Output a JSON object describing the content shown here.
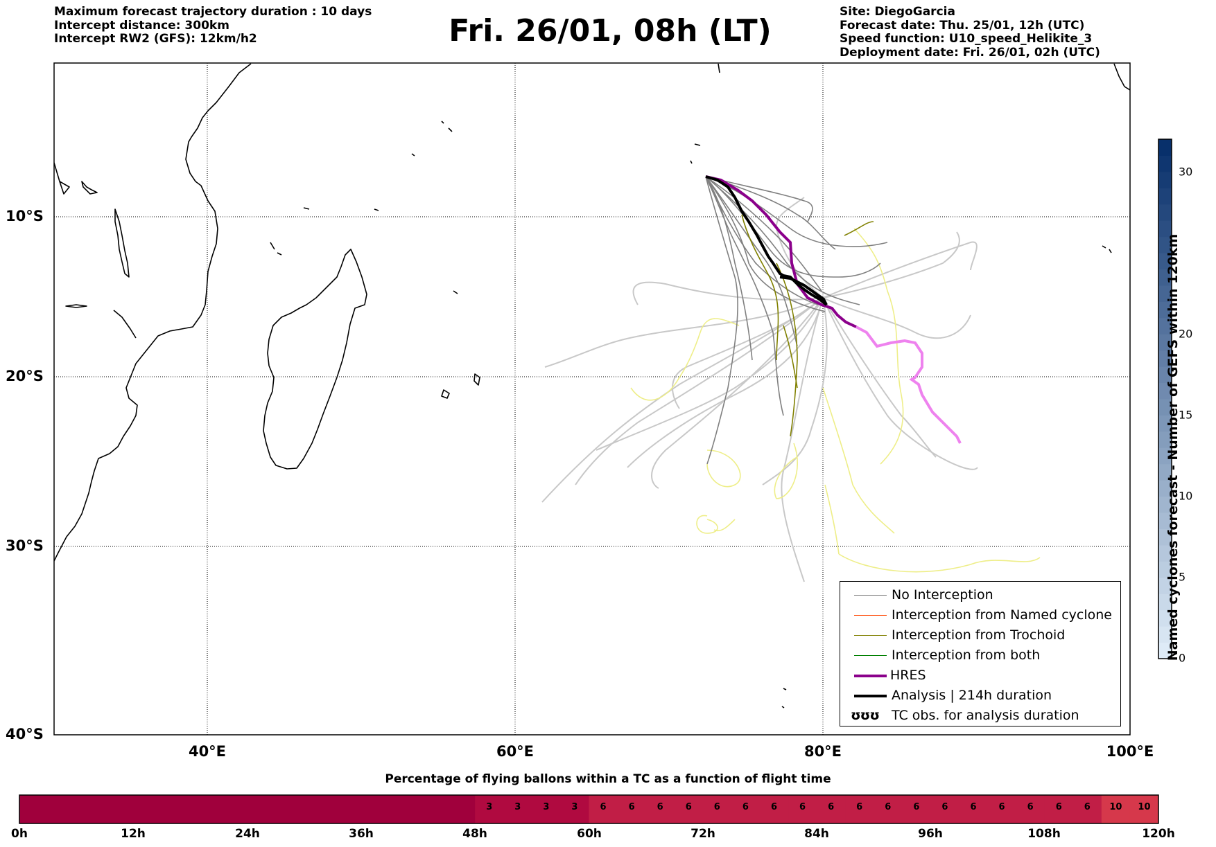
{
  "header_left": {
    "line1": "Maximum forecast trajectory duration : 10 days",
    "line2": "Intercept distance: 300km",
    "line3": "Intercept RW2 (GFS):  12km/h2"
  },
  "title": "Fri. 26/01, 08h (LT)",
  "header_right": {
    "line1": "Site: DiegoGarcia",
    "line2": "Forecast date: Thu. 25/01, 12h (UTC)",
    "line3": "Speed function: U10_speed_Helikite_3",
    "line4": "Deployment date: Fri. 26/01, 02h (UTC)"
  },
  "map": {
    "lon_range": [
      30,
      100
    ],
    "lat_range": [
      -40,
      1
    ],
    "lat_labels": [
      "10°S",
      "20°S",
      "30°S",
      "40°S"
    ],
    "lon_labels": [
      "40°E",
      "60°E",
      "80°E",
      "100°E"
    ],
    "gridlines": true,
    "colors": {
      "no_interception": "#808080",
      "no_interception_light": "#c8c8c8",
      "named_cyclone": "#ff4500",
      "trochoid": "#808000",
      "both": "#008000",
      "hres": "#8b008b",
      "hres_later": "#ee82ee",
      "analysis": "#000000",
      "tc_obs": "#eeee88"
    }
  },
  "legend": {
    "items": [
      {
        "label": "No Interception",
        "color": "#808080"
      },
      {
        "label": "Interception from Named cyclone",
        "color": "#ff4500"
      },
      {
        "label": "Interception from Trochoid",
        "color": "#808000"
      },
      {
        "label": "Interception from both",
        "color": "#008000"
      },
      {
        "label": "HRES",
        "color": "#8b008b"
      },
      {
        "label": "Analysis | 214h duration",
        "color": "#000000"
      }
    ],
    "tc_symbol": "ʊʊʊ",
    "tc_label": "TC obs. for analysis duration"
  },
  "colorbar": {
    "label": "Named cyclones forecast - Number of GEFS within 120km",
    "ticks": [
      "0",
      "5",
      "10",
      "15",
      "20",
      "30"
    ],
    "tick_values": [
      0,
      5,
      10,
      15,
      20,
      30
    ],
    "max": 32
  },
  "percentage_bar": {
    "title": "Percentage of flying ballons within a TC as a function of flight time",
    "tick_labels": [
      "0h",
      "12h",
      "24h",
      "36h",
      "48h",
      "60h",
      "72h",
      "84h",
      "96h",
      "108h",
      "120h"
    ],
    "values": [
      0,
      0,
      0,
      0,
      0,
      0,
      0,
      0,
      0,
      0,
      0,
      0,
      0,
      0,
      0,
      0,
      3,
      3,
      3,
      3,
      6,
      6,
      6,
      6,
      6,
      6,
      6,
      6,
      6,
      6,
      6,
      6,
      6,
      6,
      6,
      6,
      6,
      6,
      10,
      10
    ],
    "value_labels": [
      "",
      "",
      "",
      "",
      "",
      "",
      "",
      "",
      "",
      "",
      "",
      "",
      "",
      "",
      "",
      "",
      "3",
      "3",
      "3",
      "3",
      "6",
      "6",
      "6",
      "6",
      "6",
      "6",
      "6",
      "6",
      "6",
      "6",
      "6",
      "6",
      "6",
      "6",
      "6",
      "6",
      "6",
      "6",
      "10",
      "10"
    ]
  }
}
